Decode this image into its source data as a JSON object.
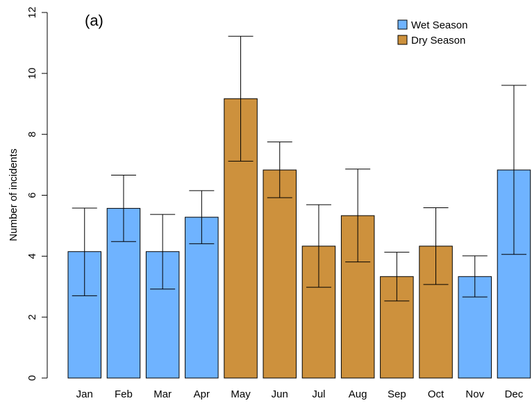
{
  "chart_data": {
    "type": "bar",
    "panel_label": "(a)",
    "ylabel": "Number of incidents",
    "xlabel": "",
    "ylim": [
      0,
      12
    ],
    "yticks": [
      0,
      2,
      4,
      6,
      8,
      10,
      12
    ],
    "categories": [
      "Jan",
      "Feb",
      "Mar",
      "Apr",
      "May",
      "Jun",
      "Jul",
      "Aug",
      "Sep",
      "Oct",
      "Nov",
      "Dec"
    ],
    "values": [
      4.15,
      5.57,
      4.15,
      5.28,
      9.17,
      6.83,
      4.33,
      5.33,
      3.33,
      4.33,
      3.33,
      6.83
    ],
    "error_low": [
      2.7,
      4.48,
      2.92,
      4.41,
      7.12,
      5.92,
      2.98,
      3.81,
      2.53,
      3.07,
      2.66,
      4.06
    ],
    "error_high": [
      5.58,
      6.66,
      5.37,
      6.15,
      11.22,
      7.75,
      5.69,
      6.86,
      4.13,
      5.59,
      4.01,
      9.61
    ],
    "season": [
      "wet",
      "wet",
      "wet",
      "wet",
      "dry",
      "dry",
      "dry",
      "dry",
      "dry",
      "dry",
      "wet",
      "wet"
    ],
    "legend": [
      {
        "key": "wet",
        "label": "Wet Season",
        "color": "#6FB3FF"
      },
      {
        "key": "dry",
        "label": "Dry Season",
        "color": "#CD913D"
      }
    ],
    "grid": false,
    "legend_position": "top-right"
  }
}
